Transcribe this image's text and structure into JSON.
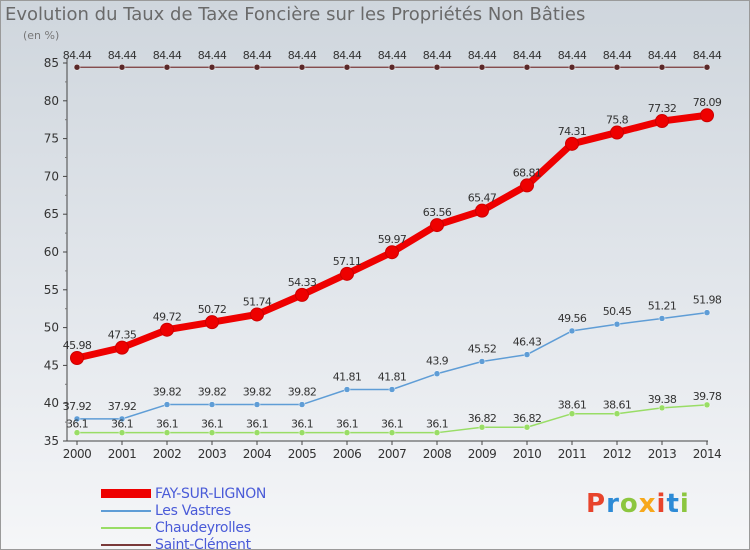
{
  "title": "Evolution du Taux de Taxe Foncière sur les Propriétés Non Bâties",
  "unit_label": "(en %)",
  "logo_text": "Proxiti",
  "logo_colors": [
    "#e8442c",
    "#2d8bd6",
    "#8cc63f",
    "#f7a81b",
    "#e8442c",
    "#2d8bd6",
    "#8cc63f"
  ],
  "chart_data": {
    "type": "line",
    "x": [
      "2000",
      "2001",
      "2002",
      "2003",
      "2004",
      "2005",
      "2006",
      "2007",
      "2008",
      "2009",
      "2010",
      "2011",
      "2012",
      "2013",
      "2014"
    ],
    "ylim": [
      35,
      85
    ],
    "yticks": [
      35,
      40,
      45,
      50,
      55,
      60,
      65,
      70,
      75,
      80,
      85
    ],
    "grid": false,
    "legend_position": "bottom-left",
    "series": [
      {
        "name": "FAY-SUR-LIGNON",
        "color": "#ee0000",
        "values": [
          45.98,
          47.35,
          49.72,
          50.72,
          51.74,
          54.33,
          57.11,
          59.97,
          63.56,
          65.47,
          68.81,
          74.31,
          75.8,
          77.32,
          78.09
        ]
      },
      {
        "name": "Les Vastres",
        "color": "#5f9dd6",
        "values": [
          37.92,
          37.92,
          39.82,
          39.82,
          39.82,
          39.82,
          41.81,
          41.81,
          43.9,
          45.52,
          46.43,
          49.56,
          50.45,
          51.21,
          51.98
        ]
      },
      {
        "name": "Chaudeyrolles",
        "color": "#99dd66",
        "values": [
          36.1,
          36.1,
          36.1,
          36.1,
          36.1,
          36.1,
          36.1,
          36.1,
          36.1,
          36.82,
          36.82,
          38.61,
          38.61,
          39.38,
          39.78
        ]
      },
      {
        "name": "Saint-Clément",
        "color": "#7a3a3a",
        "values": [
          84.44,
          84.44,
          84.44,
          84.44,
          84.44,
          84.44,
          84.44,
          84.44,
          84.44,
          84.44,
          84.44,
          84.44,
          84.44,
          84.44,
          84.44
        ]
      }
    ]
  }
}
